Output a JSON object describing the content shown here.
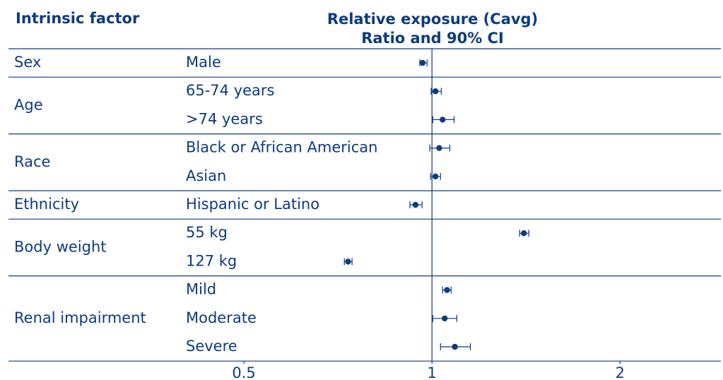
{
  "chart_data": {
    "type": "forest",
    "header": "Intrinsic factor",
    "title": [
      "Relative exposure (Cavg)",
      "Ratio and 90% CI"
    ],
    "color": "#0d3b7f",
    "log_scale": true,
    "xlim": [
      0.21,
      2.9
    ],
    "xticks": [
      0.5,
      1,
      2
    ],
    "reference_line": 1,
    "groups": [
      {
        "name": "Sex",
        "rows": [
          {
            "label": "Male",
            "value": 0.966,
            "lower": 0.956,
            "upper": 0.982
          }
        ]
      },
      {
        "name": "Age",
        "rows": [
          {
            "label": "65-74 years",
            "value": 1.013,
            "lower": 0.997,
            "upper": 1.035
          },
          {
            "label": ">74 years",
            "value": 1.04,
            "lower": 1.003,
            "upper": 1.085
          }
        ]
      },
      {
        "name": "Race",
        "rows": [
          {
            "label": "Black or African American",
            "value": 1.027,
            "lower": 0.992,
            "upper": 1.068
          },
          {
            "label": "Asian",
            "value": 1.013,
            "lower": 0.995,
            "upper": 1.032
          }
        ]
      },
      {
        "name": "Ethnicity",
        "rows": [
          {
            "label": "Hispanic or Latino",
            "value": 0.941,
            "lower": 0.922,
            "upper": 0.964
          }
        ]
      },
      {
        "name": "Body weight",
        "rows": [
          {
            "label": "55 kg",
            "value": 1.403,
            "lower": 1.381,
            "upper": 1.429
          },
          {
            "label": "127 kg",
            "value": 0.734,
            "lower": 0.724,
            "upper": 0.745
          }
        ]
      },
      {
        "name": "Renal impairment",
        "rows": [
          {
            "label": "Mild",
            "value": 1.057,
            "lower": 1.04,
            "upper": 1.073
          },
          {
            "label": "Moderate",
            "value": 1.048,
            "lower": 1.003,
            "upper": 1.096
          },
          {
            "label": "Severe",
            "value": 1.088,
            "lower": 1.032,
            "upper": 1.152
          }
        ]
      }
    ]
  }
}
